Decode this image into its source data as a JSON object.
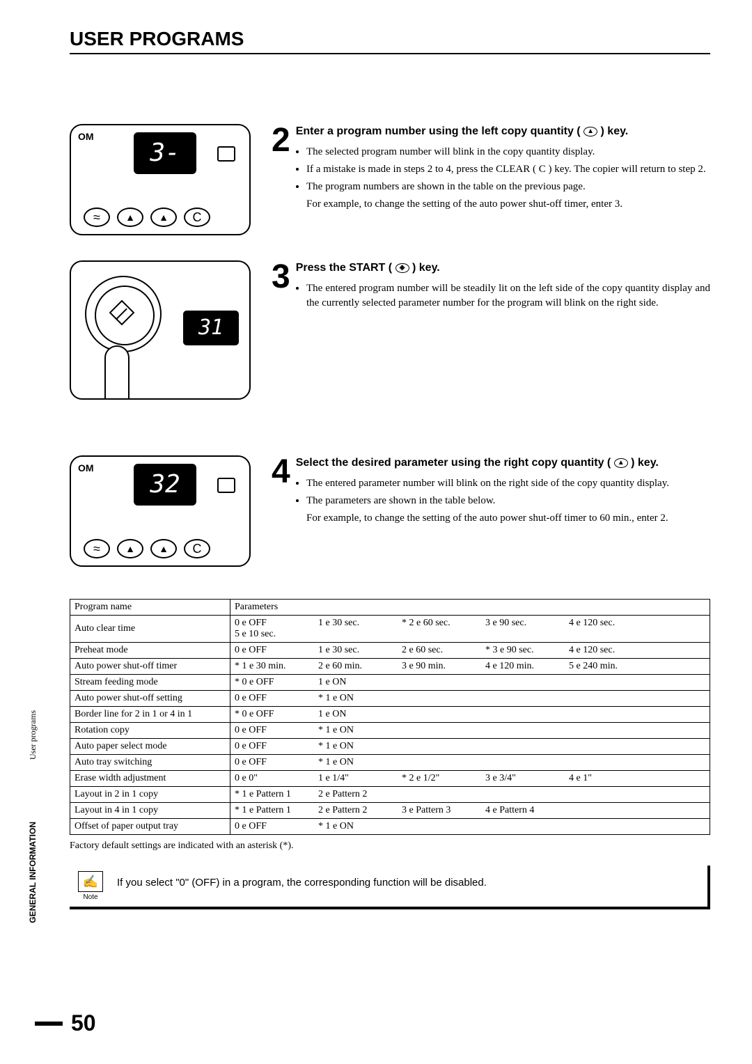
{
  "header": {
    "title": "USER PROGRAMS"
  },
  "side": {
    "label1": "User programs",
    "label2": "GENERAL INFORMATION"
  },
  "illustrations": {
    "display1": "3-",
    "display2": "31",
    "display3": "32",
    "om": "OM",
    "clear": "C"
  },
  "steps": [
    {
      "num": "2",
      "title_before": "Enter a program number using the left copy quantity ( ",
      "title_after": " ) key.",
      "key_glyph": "▲",
      "bullets": [
        "The selected program number will blink in the copy quantity display.",
        "If a mistake is made in steps 2 to 4, press the CLEAR ( C ) key. The copier will return to step 2.",
        "The program numbers are shown in the table on the previous page."
      ],
      "tail": "For example, to change the setting of the auto power shut-off timer, enter 3."
    },
    {
      "num": "3",
      "title_before": "Press the START ( ",
      "title_after": " ) key.",
      "key_glyph": "◈",
      "bullets": [
        "The entered program number will be steadily lit on the left side of the copy quantity display and the currently selected parameter number for the program will blink on the right side."
      ],
      "tail": ""
    },
    {
      "num": "4",
      "title_before": "Select the desired parameter using the right copy quantity ( ",
      "title_after": " ) key.",
      "key_glyph": "▲",
      "bullets": [
        "The entered parameter number will blink on the right side of the copy quantity display.",
        "The parameters are shown in the table below."
      ],
      "tail": "For example, to change the setting of the auto power shut-off timer to 60 min., enter 2."
    }
  ],
  "table": {
    "header": {
      "col1": "Program name",
      "col2": "Parameters"
    },
    "arrow": "e",
    "rows": [
      {
        "name": "Auto clear time",
        "params": [
          {
            "n": "0",
            "v": "OFF"
          },
          {
            "n": "1",
            "v": "30 sec."
          },
          {
            "n": "2",
            "v": "60 sec.",
            "d": true
          },
          {
            "n": "3",
            "v": "90 sec."
          },
          {
            "n": "4",
            "v": "120 sec."
          },
          {
            "n": "5",
            "v": "10 sec."
          }
        ]
      },
      {
        "name": "Preheat mode",
        "params": [
          {
            "n": "0",
            "v": "OFF"
          },
          {
            "n": "1",
            "v": "30 sec."
          },
          {
            "n": "2",
            "v": "60 sec."
          },
          {
            "n": "3",
            "v": "90 sec.",
            "d": true
          },
          {
            "n": "4",
            "v": "120 sec."
          }
        ]
      },
      {
        "name": "Auto power shut-off timer",
        "params": [
          {
            "n": "1",
            "v": "30 min.",
            "d": true
          },
          {
            "n": "2",
            "v": "60 min."
          },
          {
            "n": "3",
            "v": "90 min."
          },
          {
            "n": "4",
            "v": "120 min."
          },
          {
            "n": "5",
            "v": "240 min."
          }
        ]
      },
      {
        "name": "Stream feeding mode",
        "params": [
          {
            "n": "0",
            "v": "OFF",
            "d": true
          },
          {
            "n": "1",
            "v": "ON"
          }
        ]
      },
      {
        "name": "Auto power shut-off setting",
        "params": [
          {
            "n": "0",
            "v": "OFF"
          },
          {
            "n": "1",
            "v": "ON",
            "d": true
          }
        ]
      },
      {
        "name": "Border line for 2 in 1 or 4 in 1",
        "params": [
          {
            "n": "0",
            "v": "OFF",
            "d": true
          },
          {
            "n": "1",
            "v": "ON"
          }
        ]
      },
      {
        "name": "Rotation copy",
        "params": [
          {
            "n": "0",
            "v": "OFF"
          },
          {
            "n": "1",
            "v": "ON",
            "d": true
          }
        ]
      },
      {
        "name": "Auto paper select mode",
        "params": [
          {
            "n": "0",
            "v": "OFF"
          },
          {
            "n": "1",
            "v": "ON",
            "d": true
          }
        ]
      },
      {
        "name": "Auto tray switching",
        "params": [
          {
            "n": "0",
            "v": "OFF"
          },
          {
            "n": "1",
            "v": "ON",
            "d": true
          }
        ]
      },
      {
        "name": "Erase width adjustment",
        "params": [
          {
            "n": "0",
            "v": "0\""
          },
          {
            "n": "1",
            "v": "1/4\""
          },
          {
            "n": "2",
            "v": "1/2\"",
            "d": true
          },
          {
            "n": "3",
            "v": "3/4\""
          },
          {
            "n": "4",
            "v": "1\""
          }
        ]
      },
      {
        "name": "Layout in 2 in 1 copy",
        "params": [
          {
            "n": "1",
            "v": "Pattern 1",
            "d": true
          },
          {
            "n": "2",
            "v": "Pattern 2"
          }
        ]
      },
      {
        "name": "Layout in 4 in 1 copy",
        "params": [
          {
            "n": "1",
            "v": "Pattern 1",
            "d": true
          },
          {
            "n": "2",
            "v": "Pattern 2"
          },
          {
            "n": "3",
            "v": "Pattern 3"
          },
          {
            "n": "4",
            "v": "Pattern 4"
          }
        ]
      },
      {
        "name": "Offset of paper output tray",
        "params": [
          {
            "n": "0",
            "v": "OFF"
          },
          {
            "n": "1",
            "v": "ON",
            "d": true
          }
        ]
      }
    ]
  },
  "footnote": "Factory default settings are indicated with an asterisk (*).",
  "note": {
    "label": "Note",
    "text": "If you select \"0\" (OFF) in a program, the corresponding function will be disabled."
  },
  "page": "50",
  "colors": {
    "text": "#000000",
    "bg": "#ffffff",
    "border": "#000000"
  }
}
